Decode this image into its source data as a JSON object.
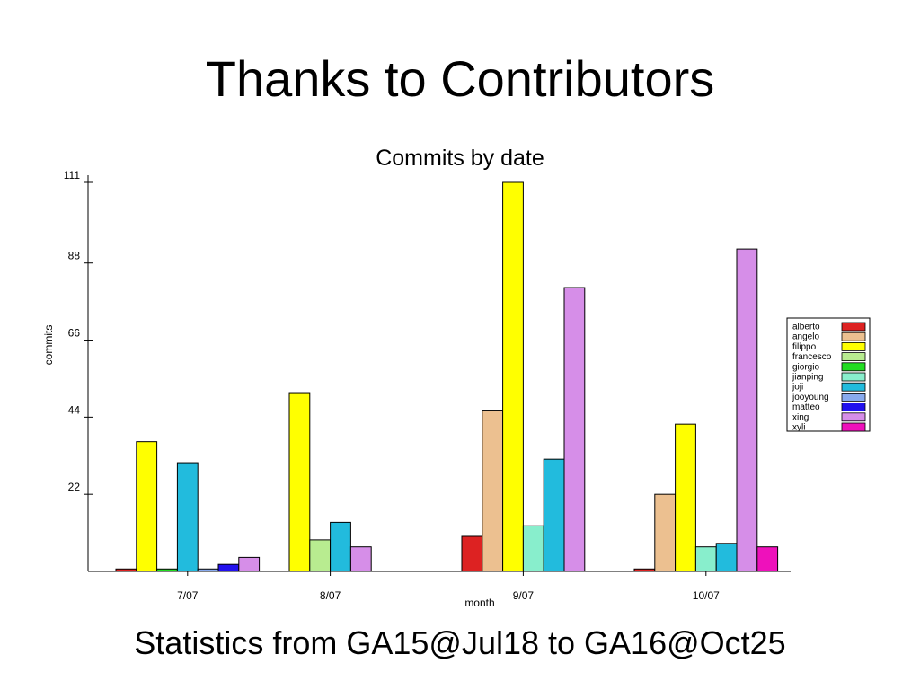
{
  "slide": {
    "title": "Thanks to Contributors",
    "footer": "Statistics from GA15@Jul18 to GA16@Oct25"
  },
  "chart_data": {
    "type": "bar",
    "title": "Commits by date",
    "xlabel": "month",
    "ylabel": "commits",
    "categories": [
      "7/07",
      "8/07",
      "9/07",
      "10/07"
    ],
    "yticks": [
      22,
      44,
      66,
      88,
      111
    ],
    "ylim": [
      0,
      111
    ],
    "grid": false,
    "legend_position": "right",
    "series": [
      {
        "name": "alberto",
        "color": "#dd2222",
        "values": [
          0.7,
          0,
          10,
          0.7
        ]
      },
      {
        "name": "angelo",
        "color": "#ecc090",
        "values": [
          0,
          0,
          46,
          22
        ]
      },
      {
        "name": "filippo",
        "color": "#ffff00",
        "values": [
          37,
          51,
          111,
          42
        ]
      },
      {
        "name": "francesco",
        "color": "#b8ec90",
        "values": [
          0,
          9,
          0,
          0
        ]
      },
      {
        "name": "giorgio",
        "color": "#22dd22",
        "values": [
          0.7,
          0,
          0,
          0
        ]
      },
      {
        "name": "jianping",
        "color": "#88eecc",
        "values": [
          0,
          0,
          13,
          7
        ]
      },
      {
        "name": "joji",
        "color": "#22bbdd",
        "values": [
          31,
          14,
          32,
          8
        ]
      },
      {
        "name": "jooyoung",
        "color": "#88aaee",
        "values": [
          0.7,
          0,
          0,
          0
        ]
      },
      {
        "name": "matteo",
        "color": "#2211ee",
        "values": [
          2,
          0,
          0,
          0
        ]
      },
      {
        "name": "xing",
        "color": "#d68ee8",
        "values": [
          4,
          7,
          81,
          92
        ]
      },
      {
        "name": "xyli",
        "color": "#ee11bb",
        "values": [
          0,
          0,
          0,
          7
        ]
      }
    ]
  }
}
